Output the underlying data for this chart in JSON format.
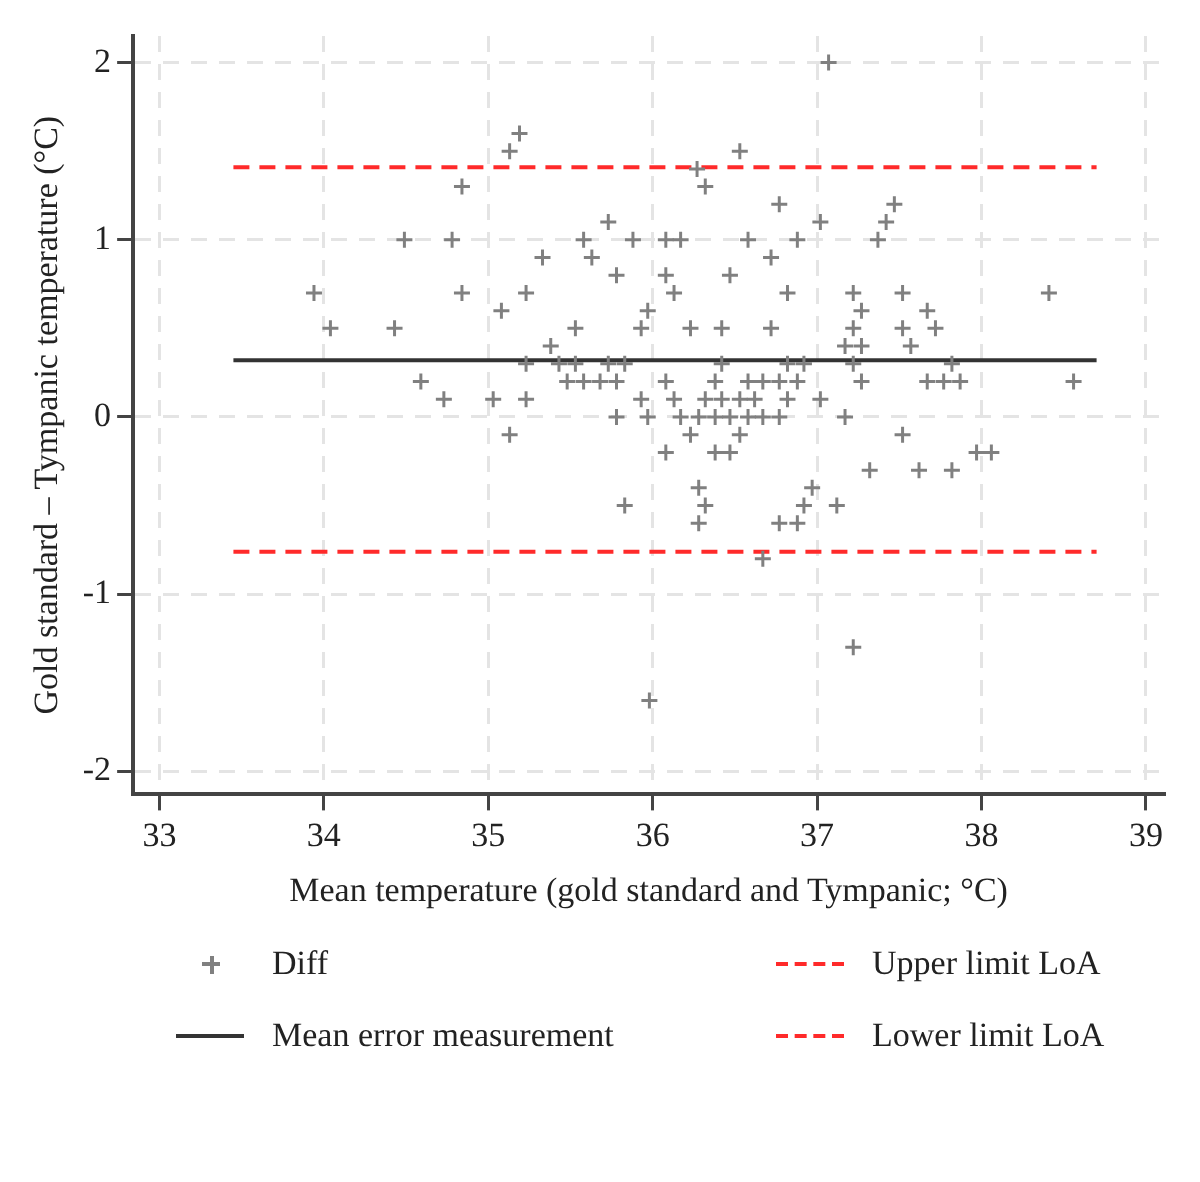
{
  "chart_data": {
    "type": "scatter",
    "xlabel": "Mean temperature (gold standard and Tympanic; °C)",
    "ylabel": "Gold standard – Tympanic temperature (°C)",
    "xlim": [
      32.84,
      39.11
    ],
    "ylim": [
      -2.13,
      2.15
    ],
    "xticks": [
      33,
      34,
      35,
      36,
      37,
      38,
      39
    ],
    "yticks": [
      -2,
      -1,
      0,
      1,
      2
    ],
    "grid": true,
    "legend": "bottom",
    "series": [
      {
        "name": "Diff",
        "type": "scatter",
        "color": "#808080",
        "marker": "cross",
        "x": [
          33.94,
          34.04,
          34.49,
          34.43,
          34.59,
          34.73,
          34.78,
          34.84,
          34.84,
          35.03,
          35.08,
          35.13,
          35.19,
          35.13,
          35.23,
          35.23,
          35.23,
          35.33,
          35.38,
          35.43,
          35.48,
          35.53,
          35.53,
          35.58,
          35.58,
          35.63,
          35.68,
          35.73,
          35.73,
          35.78,
          35.78,
          35.78,
          35.83,
          35.88,
          35.93,
          35.93,
          35.97,
          35.97,
          37.07,
          36.53,
          36.27,
          36.32,
          36.77,
          37.02,
          37.47,
          37.42,
          37.37,
          36.08,
          36.17,
          36.58,
          36.88,
          36.72,
          36.08,
          36.47,
          36.13,
          36.82,
          37.22,
          37.52,
          38.41,
          37.27,
          37.67,
          36.23,
          36.42,
          36.72,
          37.22,
          37.52,
          37.72,
          37.17,
          37.27,
          37.57,
          36.42,
          36.82,
          36.92,
          37.22,
          37.82,
          36.08,
          36.38,
          36.58,
          36.67,
          36.77,
          36.88,
          37.27,
          37.67,
          37.77,
          37.87,
          38.56,
          36.13,
          36.32,
          36.42,
          36.53,
          36.62,
          36.82,
          37.02,
          36.17,
          36.28,
          36.38,
          36.47,
          36.58,
          36.67,
          36.77,
          37.17,
          36.23,
          36.53,
          37.52,
          36.08,
          36.38,
          36.47,
          37.97,
          38.06,
          37.32,
          37.62,
          37.82,
          36.28,
          36.97,
          36.32,
          36.92,
          37.12,
          36.28,
          36.77,
          36.88,
          36.67,
          37.22,
          35.98,
          35.83
        ],
        "values": [
          0.7,
          0.5,
          1.0,
          0.5,
          0.2,
          0.1,
          1.0,
          1.3,
          0.7,
          0.1,
          0.6,
          1.5,
          1.6,
          -0.1,
          0.7,
          0.3,
          0.1,
          0.9,
          0.4,
          0.3,
          0.2,
          0.3,
          0.5,
          1.0,
          0.2,
          0.9,
          0.2,
          1.1,
          0.3,
          0.8,
          0.2,
          0.0,
          0.3,
          1.0,
          0.5,
          0.1,
          0.6,
          0.0,
          2.0,
          1.5,
          1.4,
          1.3,
          1.2,
          1.1,
          1.2,
          1.1,
          1.0,
          1.0,
          1.0,
          1.0,
          1.0,
          0.9,
          0.8,
          0.8,
          0.7,
          0.7,
          0.7,
          0.7,
          0.7,
          0.6,
          0.6,
          0.5,
          0.5,
          0.5,
          0.5,
          0.5,
          0.5,
          0.4,
          0.4,
          0.4,
          0.3,
          0.3,
          0.3,
          0.3,
          0.3,
          0.2,
          0.2,
          0.2,
          0.2,
          0.2,
          0.2,
          0.2,
          0.2,
          0.2,
          0.2,
          0.2,
          0.1,
          0.1,
          0.1,
          0.1,
          0.1,
          0.1,
          0.1,
          0.0,
          0.0,
          0.0,
          0.0,
          0.0,
          0.0,
          0.0,
          0.0,
          -0.1,
          -0.1,
          -0.1,
          -0.2,
          -0.2,
          -0.2,
          -0.2,
          -0.2,
          -0.3,
          -0.3,
          -0.3,
          -0.4,
          -0.4,
          -0.5,
          -0.5,
          -0.5,
          -0.6,
          -0.6,
          -0.6,
          -0.8,
          -1.3,
          -1.6,
          -0.5
        ]
      },
      {
        "name": "Mean error measurement",
        "type": "line",
        "color": "#333333",
        "line_style": "solid",
        "marker": "none",
        "x": [
          33.45,
          38.7
        ],
        "values": [
          0.32,
          0.32
        ]
      },
      {
        "name": "Upper limit LoA",
        "type": "line",
        "color": "#ff2a2a",
        "line_style": "dashed",
        "marker": "none",
        "x": [
          33.45,
          38.7
        ],
        "values": [
          1.41,
          1.41
        ]
      },
      {
        "name": "Lower limit LoA",
        "type": "line",
        "color": "#ff2a2a",
        "line_style": "dashed",
        "marker": "none",
        "x": [
          33.45,
          38.7
        ],
        "values": [
          -0.76,
          -0.76
        ]
      }
    ]
  }
}
